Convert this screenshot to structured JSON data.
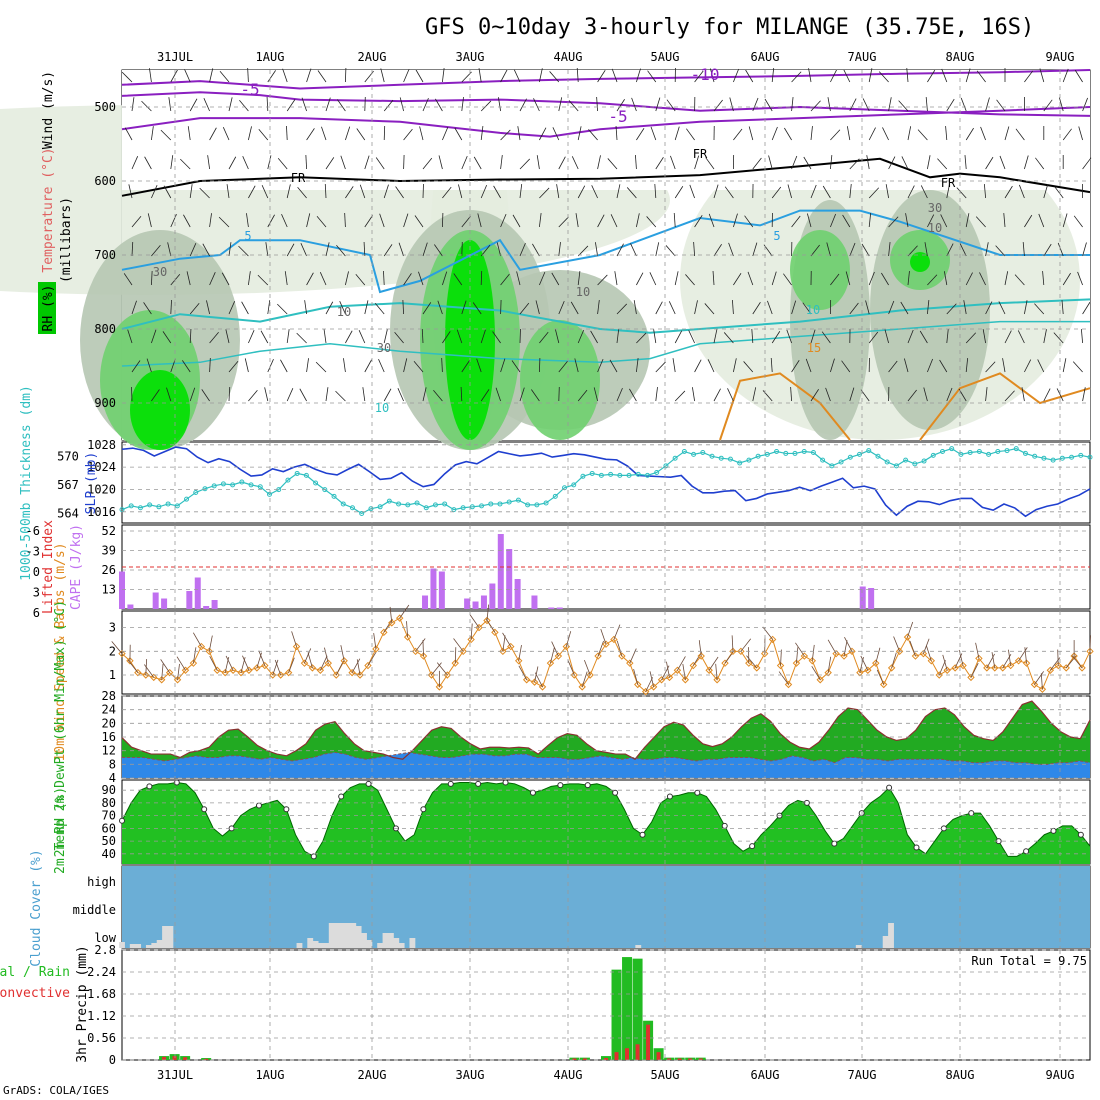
{
  "title": "GFS 0~10day 3-hourly for MILANGE (35.75E, 16S)",
  "footer": "GrADS: COLA/IGES",
  "colors": {
    "purple": "#8a1fc0",
    "blue_slp": "#1f3fcf",
    "cyan": "#2fbfc0",
    "rh_green": "#00c800",
    "cape": "#c070f0",
    "wind": "#e08a20",
    "temp_fill": "#22aa22",
    "dew_fill": "#2f88e8",
    "cloud_bg": "#6baed6",
    "rain_total": "#22bb22",
    "rain_conv": "#e03030"
  },
  "chart_data": [
    {
      "type": "heatmap",
      "panel": "upper-air",
      "x_ticks": [
        "31JUL",
        "1AUG",
        "2AUG",
        "3AUG",
        "4AUG",
        "5AUG",
        "6AUG",
        "7AUG",
        "8AUG",
        "9AUG"
      ],
      "y_label_left": "Wind (m/s)",
      "y_label_temp": "Temperature (°C)",
      "y_label_rh": "RH (%)",
      "y_label_inner": "(millibars)",
      "y_ticks": [
        500,
        600,
        700,
        800,
        900
      ],
      "contour_labels": [
        "-10",
        "-5",
        "-5",
        "FR",
        "FR",
        "FR",
        "5",
        "5",
        "10",
        "15",
        "10",
        "30",
        "30",
        "10",
        "30",
        "10",
        "10"
      ]
    },
    {
      "type": "line",
      "panel": "slp-thickness",
      "y_label_left": "1000-500mb Thickness (dm)",
      "y_label_right": "SLP (mb)",
      "left_ticks": [
        564,
        567,
        570
      ],
      "right_ticks": [
        1016,
        1020,
        1024,
        1028
      ],
      "slp": [
        1027.2,
        1027.4,
        1027.0,
        1026.0,
        1026.8,
        1027.6,
        1027.3,
        1025.8,
        1024.8,
        1025.5,
        1025.0,
        1023.6,
        1022.4,
        1022.6,
        1023.7,
        1023.2,
        1024.0,
        1024.5,
        1023.6,
        1022.9,
        1022.6,
        1023.6,
        1024.5,
        1023.2,
        1021.8,
        1022.0,
        1023.0,
        1021.5,
        1020.5,
        1020.9,
        1022.8,
        1024.4,
        1025.0,
        1024.6,
        1025.7,
        1026.8,
        1026.4,
        1026.0,
        1026.2,
        1026.5,
        1025.8,
        1026.1,
        1026.4,
        1026.2,
        1025.8,
        1025.4,
        1025.3,
        1024.2,
        1022.5,
        1022.4,
        1022.3,
        1022.2,
        1022.5,
        1020.6,
        1019.4,
        1019.4,
        1019.7,
        1019.8,
        1018.0,
        1018.4,
        1019.2,
        1019.5,
        1019.8,
        1020.4,
        1019.8,
        1020.6,
        1021.3,
        1022.0,
        1020.3,
        1020.6,
        1020.1,
        1017.2,
        1015.4,
        1017.0,
        1017.9,
        1017.8,
        1017.3,
        1018.0,
        1018.4,
        1018.4,
        1016.8,
        1016.3,
        1017.4,
        1016.7,
        1015.2,
        1016.4,
        1017.0,
        1017.4,
        1018.3,
        1019.0,
        1020.1
      ],
      "thickness": [
        564.4,
        564.8,
        564.6,
        564.9,
        564.7,
        565.0,
        564.8,
        565.5,
        566.2,
        566.6,
        566.9,
        567.1,
        567.0,
        567.3,
        567.0,
        566.8,
        566.0,
        566.5,
        567.5,
        568.2,
        568.0,
        567.2,
        566.5,
        565.8,
        565.0,
        564.6,
        564.0,
        564.5,
        564.7,
        565.3,
        565.0,
        564.9,
        565.1,
        564.6,
        564.9,
        565.0,
        564.4,
        564.6,
        564.7,
        564.8,
        565.0,
        565.0,
        565.2,
        565.4,
        564.9,
        564.9,
        565.1,
        565.8,
        566.7,
        567.0,
        567.9,
        568.2,
        568.0,
        568.1,
        568.0,
        568.0,
        568.1,
        568.0,
        568.3,
        569.0,
        569.8,
        570.5,
        570.2,
        570.4,
        570.0,
        569.8,
        569.7,
        569.3,
        569.6,
        570.0,
        570.2,
        570.5,
        570.3,
        570.3,
        570.5,
        570.4,
        569.6,
        569.0,
        569.4,
        569.9,
        570.2,
        570.6,
        570.0,
        569.4,
        569.0,
        569.6,
        569.2,
        569.5,
        570.1,
        570.5,
        570.8,
        570.2,
        570.4,
        570.5,
        570.2,
        570.5,
        570.6,
        570.8,
        570.3,
        570.0,
        569.8,
        569.6,
        569.8,
        569.9,
        570.1,
        569.9
      ]
    },
    {
      "type": "bar",
      "panel": "cape-lifted-index",
      "y_label_left": "Lifted Index",
      "y_label_right": "CAPE (J/kg)",
      "left_ticks": [
        "-6",
        "-3",
        "0",
        "3",
        "6"
      ],
      "right_ticks": [
        13,
        26,
        39,
        52
      ],
      "cape": [
        25,
        3,
        0,
        0,
        11,
        7,
        0,
        0,
        12,
        21,
        2,
        6,
        0,
        0,
        0,
        0,
        0,
        0,
        0,
        0,
        0,
        0,
        0,
        0,
        0,
        0,
        0,
        0,
        0,
        0,
        0,
        0,
        0,
        0,
        0,
        0,
        9,
        27,
        25,
        0,
        0,
        7,
        5,
        9,
        17,
        50,
        40,
        20,
        0,
        9,
        0,
        1,
        1,
        0,
        0,
        0,
        0,
        0,
        0,
        0,
        0,
        0,
        0,
        0,
        0,
        0,
        0,
        0,
        0,
        0,
        0,
        0,
        0,
        0,
        0,
        0,
        0,
        0,
        0,
        0,
        0,
        0,
        0,
        0,
        0,
        0,
        0,
        0,
        15,
        14,
        0,
        0,
        0,
        0,
        0,
        0,
        0,
        0,
        0,
        0,
        0,
        0,
        0,
        0,
        0,
        0,
        0,
        0,
        0,
        0,
        0,
        0,
        0,
        0,
        0,
        0
      ]
    },
    {
      "type": "line",
      "panel": "10m-wind",
      "y_label": "10m Wind Speed & Barbs (m/s)",
      "y_ticks": [
        1,
        2,
        3
      ],
      "speed": [
        1.9,
        1.6,
        1.1,
        1.0,
        0.9,
        0.8,
        1.1,
        0.8,
        1.2,
        1.5,
        2.2,
        2.0,
        1.2,
        1.1,
        1.2,
        1.1,
        1.2,
        1.3,
        1.4,
        1.0,
        1.0,
        1.1,
        2.2,
        1.5,
        1.3,
        1.2,
        1.5,
        1.0,
        1.6,
        1.1,
        1.0,
        1.4,
        2.1,
        2.8,
        3.2,
        3.4,
        2.6,
        2.0,
        1.8,
        1.0,
        0.5,
        1.0,
        1.5,
        2.0,
        2.5,
        3.0,
        3.3,
        2.8,
        2.0,
        2.2,
        1.6,
        0.8,
        0.7,
        0.5,
        1.5,
        1.8,
        2.2,
        1.0,
        0.5,
        1.0,
        1.8,
        2.3,
        2.5,
        1.8,
        1.5,
        0.6,
        0.3,
        0.5,
        0.8,
        0.9,
        1.2,
        0.8,
        1.4,
        1.8,
        1.2,
        0.8,
        1.5,
        2.0,
        2.0,
        1.5,
        1.3,
        1.9,
        2.5,
        1.4,
        0.6,
        1.5,
        1.8,
        1.6,
        0.8,
        1.1,
        1.9,
        1.8,
        2.0,
        1.1,
        1.2,
        1.5,
        0.6,
        1.3,
        2.0,
        2.6,
        1.8,
        1.9,
        1.6,
        1.0,
        1.2,
        1.3,
        1.4,
        0.9,
        1.7,
        1.3,
        1.3,
        1.3,
        1.4,
        1.6,
        1.5,
        0.6,
        0.4,
        1.2,
        1.4,
        1.3,
        1.8,
        1.3,
        2.0
      ]
    },
    {
      "type": "area",
      "panel": "2m-temp-dewpt",
      "y_label": "2m Temp 2m DewPt (6hr Min/Max) (°C)",
      "y_ticks": [
        4,
        8,
        12,
        16,
        20,
        24,
        28
      ],
      "temp": [
        15.8,
        13,
        12,
        11,
        11,
        11,
        10,
        11.5,
        12,
        13,
        16,
        18,
        18.3,
        16,
        13.5,
        12,
        11,
        10.5,
        12,
        14,
        18,
        19.8,
        20.5,
        17,
        14,
        12,
        11.5,
        11,
        10,
        9.5,
        12,
        15,
        18,
        19,
        18.5,
        16,
        14,
        12.5,
        13,
        13,
        12.8,
        13,
        12.8,
        11,
        13.5,
        15.8,
        17,
        16.5,
        14,
        12,
        11.5,
        11,
        11,
        9.5,
        13,
        16,
        19,
        20.3,
        19.5,
        16.5,
        14,
        13.2,
        14,
        16,
        19,
        21.5,
        22.8,
        20.6,
        17,
        14.5,
        13,
        12.5,
        14.5,
        18,
        22,
        24.5,
        24,
        21,
        18,
        16,
        15,
        15.5,
        18,
        22,
        24,
        24.5,
        22.5,
        19,
        16.5,
        15.5,
        15,
        17.5,
        21.5,
        25.5,
        26.5,
        23.5,
        20,
        17.5,
        16,
        15.5,
        21
      ],
      "dewpt": [
        10,
        10,
        10,
        9.5,
        9,
        9.5,
        10,
        10.5,
        10,
        10,
        10.5,
        10.5,
        10,
        9.5,
        10,
        9.5,
        9,
        9.5,
        10,
        11,
        11.5,
        11,
        10,
        9.5,
        10,
        10.5,
        11,
        11.5,
        11,
        10.5,
        10,
        10,
        10.5,
        11,
        11,
        10.5,
        10.5,
        11,
        11,
        10,
        10,
        10,
        9.5,
        9.5,
        10,
        10.5,
        10,
        9.5,
        10,
        9.5,
        9.5,
        10,
        10,
        9.5,
        9,
        9.5,
        9.5,
        10,
        10,
        10,
        9.5,
        9,
        9.5,
        10.5,
        10,
        9,
        9.5,
        8.5,
        10,
        10,
        9.5,
        9.5,
        9,
        9.5,
        9.5,
        9.5,
        9.5,
        9.5,
        9,
        9,
        8.5,
        8.5,
        9,
        9,
        8.5,
        8.5,
        8,
        8,
        8.5,
        8.5,
        9,
        8.5
      ]
    },
    {
      "type": "area",
      "panel": "2m-rh",
      "y_label": "2m RH (%)",
      "y_ticks": [
        40,
        50,
        60,
        70,
        80,
        90
      ],
      "rh": [
        66,
        80,
        90,
        93,
        95,
        95,
        96,
        95,
        88,
        75,
        60,
        54,
        60,
        70,
        75,
        78,
        80,
        82,
        75,
        55,
        42,
        38,
        50,
        70,
        85,
        92,
        95,
        95,
        90,
        75,
        60,
        50,
        55,
        75,
        88,
        95,
        95,
        96,
        96,
        95,
        96,
        95,
        96,
        95,
        92,
        88,
        90,
        93,
        94,
        95,
        95,
        94,
        95,
        93,
        88,
        75,
        60,
        55,
        65,
        80,
        85,
        86,
        88,
        88,
        85,
        75,
        62,
        48,
        42,
        46,
        55,
        62,
        70,
        78,
        82,
        80,
        70,
        58,
        48,
        52,
        62,
        72,
        80,
        85,
        92,
        80,
        55,
        45,
        40,
        50,
        60,
        67,
        70,
        72,
        72,
        62,
        50,
        38,
        38,
        42,
        48,
        55,
        58,
        62,
        62,
        55,
        46
      ]
    },
    {
      "type": "bar",
      "panel": "cloud-cover",
      "y_label": "Cloud Cover (%)",
      "level_labels": [
        "high",
        "middle",
        "low"
      ],
      "low_cloud": [
        6,
        0,
        4,
        4,
        0,
        3,
        5,
        8,
        22,
        22,
        0,
        0,
        0,
        0,
        0,
        0,
        0,
        0,
        0,
        0,
        0,
        0,
        0,
        0,
        0,
        0,
        0,
        0,
        0,
        0,
        0,
        0,
        0,
        5,
        0,
        10,
        7,
        5,
        5,
        25,
        25,
        25,
        25,
        25,
        22,
        15,
        8,
        0,
        5,
        15,
        15,
        10,
        5,
        0,
        10,
        0,
        0,
        0,
        0,
        0,
        0,
        0,
        0,
        0,
        0,
        0,
        0,
        0,
        0,
        0,
        0,
        0,
        0,
        0,
        0,
        0,
        0,
        0,
        0,
        0,
        0,
        0,
        0,
        0,
        0,
        0,
        0,
        0,
        0,
        0,
        0,
        0,
        0,
        0,
        0,
        0,
        3,
        0,
        0,
        0,
        0,
        0,
        0,
        0,
        0,
        0,
        0,
        0,
        0,
        0,
        0,
        0,
        0,
        0,
        0,
        0,
        0,
        0,
        0,
        0,
        0,
        0,
        0,
        0,
        0,
        0,
        0,
        0,
        0,
        0,
        0,
        0,
        0,
        0,
        0,
        0,
        0,
        3,
        0,
        0,
        0,
        0,
        12,
        25,
        0,
        0,
        0,
        0,
        0,
        0,
        0,
        0,
        0,
        0,
        0,
        0,
        0,
        0,
        0,
        0,
        0,
        0,
        0,
        0,
        0,
        0,
        0,
        0,
        0,
        0,
        0,
        0,
        0,
        0,
        0,
        0,
        0,
        0,
        0,
        0,
        0
      ]
    },
    {
      "type": "bar",
      "panel": "3hr-precip",
      "y_label": "3hr Precip (mm)",
      "legend_total": "Total / Rain",
      "legend_conv": "Convective",
      "run_total": "Run Total = 9.75",
      "y_ticks": [
        "0",
        "0.56",
        "1.12",
        "1.68",
        "2.24",
        "2.8"
      ],
      "x_ticks": [
        "31JUL",
        "1AUG",
        "2AUG",
        "3AUG",
        "4AUG",
        "5AUG",
        "6AUG",
        "7AUG",
        "8AUG",
        "9AUG"
      ],
      "total": [
        0,
        0,
        0,
        0,
        0.1,
        0.15,
        0.1,
        0,
        0.05,
        0,
        0,
        0,
        0,
        0,
        0,
        0,
        0,
        0,
        0,
        0,
        0,
        0,
        0,
        0,
        0,
        0,
        0,
        0,
        0,
        0,
        0,
        0,
        0,
        0,
        0,
        0,
        0,
        0,
        0,
        0,
        0,
        0,
        0,
        0.06,
        0.06,
        0,
        0.1,
        2.3,
        2.62,
        2.58,
        1.0,
        0.3,
        0.06,
        0.06,
        0.06,
        0.06,
        0,
        0,
        0,
        0,
        0,
        0,
        0,
        0,
        0,
        0,
        0,
        0,
        0,
        0,
        0,
        0,
        0,
        0,
        0,
        0,
        0,
        0,
        0,
        0,
        0,
        0,
        0,
        0,
        0,
        0,
        0,
        0,
        0,
        0,
        0,
        0,
        0
      ],
      "convective": [
        0,
        0,
        0,
        0,
        0.08,
        0.1,
        0.07,
        0,
        0.03,
        0,
        0,
        0,
        0,
        0,
        0,
        0,
        0,
        0,
        0,
        0,
        0,
        0,
        0,
        0,
        0,
        0,
        0,
        0,
        0,
        0,
        0,
        0,
        0,
        0,
        0,
        0,
        0,
        0,
        0,
        0,
        0,
        0,
        0,
        0.04,
        0.04,
        0,
        0.05,
        0.2,
        0.3,
        0.4,
        0.9,
        0.2,
        0.04,
        0.04,
        0.04,
        0.04,
        0,
        0,
        0,
        0,
        0,
        0,
        0,
        0,
        0,
        0,
        0,
        0,
        0,
        0,
        0,
        0,
        0,
        0,
        0,
        0,
        0,
        0,
        0,
        0,
        0,
        0,
        0,
        0,
        0,
        0,
        0,
        0,
        0,
        0,
        0,
        0,
        0
      ]
    }
  ]
}
